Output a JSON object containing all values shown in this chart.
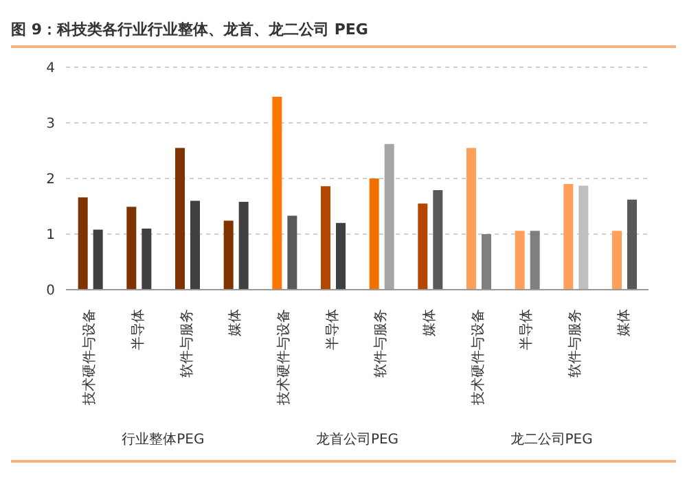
{
  "chart_data": {
    "type": "bar",
    "title": "图 9：科技类各行业行业整体、龙首、龙二公司 PEG",
    "categories": [
      "技术硬件与设备",
      "半导体",
      "软件与服务",
      "媒体",
      "技术硬件与设备",
      "半导体",
      "软件与服务",
      "媒体",
      "技术硬件与设备",
      "半导体",
      "软件与服务",
      "媒体"
    ],
    "series": [
      {
        "colors": [
          "#7f3300",
          "#7f3300",
          "#7f3300",
          "#7f3300",
          "#ff7700",
          "#b34700",
          "#f07000",
          "#b34700",
          "#ffa05a",
          "#ffa05a",
          "#ffa05a",
          "#ffa05a"
        ],
        "values": [
          1.66,
          1.49,
          2.55,
          1.24,
          3.47,
          1.86,
          2.0,
          1.55,
          2.55,
          1.06,
          1.9,
          1.06
        ]
      },
      {
        "colors": [
          "#404040",
          "#404040",
          "#404040",
          "#404040",
          "#595959",
          "#404040",
          "#a6a6a6",
          "#595959",
          "#7f7f7f",
          "#7f7f7f",
          "#bfbfbf",
          "#595959"
        ],
        "values": [
          1.08,
          1.1,
          1.6,
          1.58,
          1.33,
          1.2,
          2.62,
          1.79,
          1.0,
          1.06,
          1.87,
          1.62
        ]
      }
    ],
    "ylim": [
      0,
      4
    ],
    "yticks": [
      0,
      1,
      2,
      3,
      4
    ],
    "grid": "y",
    "annotations": [
      "行业整体PEG",
      "龙首公司PEG",
      "龙二公司PEG"
    ]
  }
}
